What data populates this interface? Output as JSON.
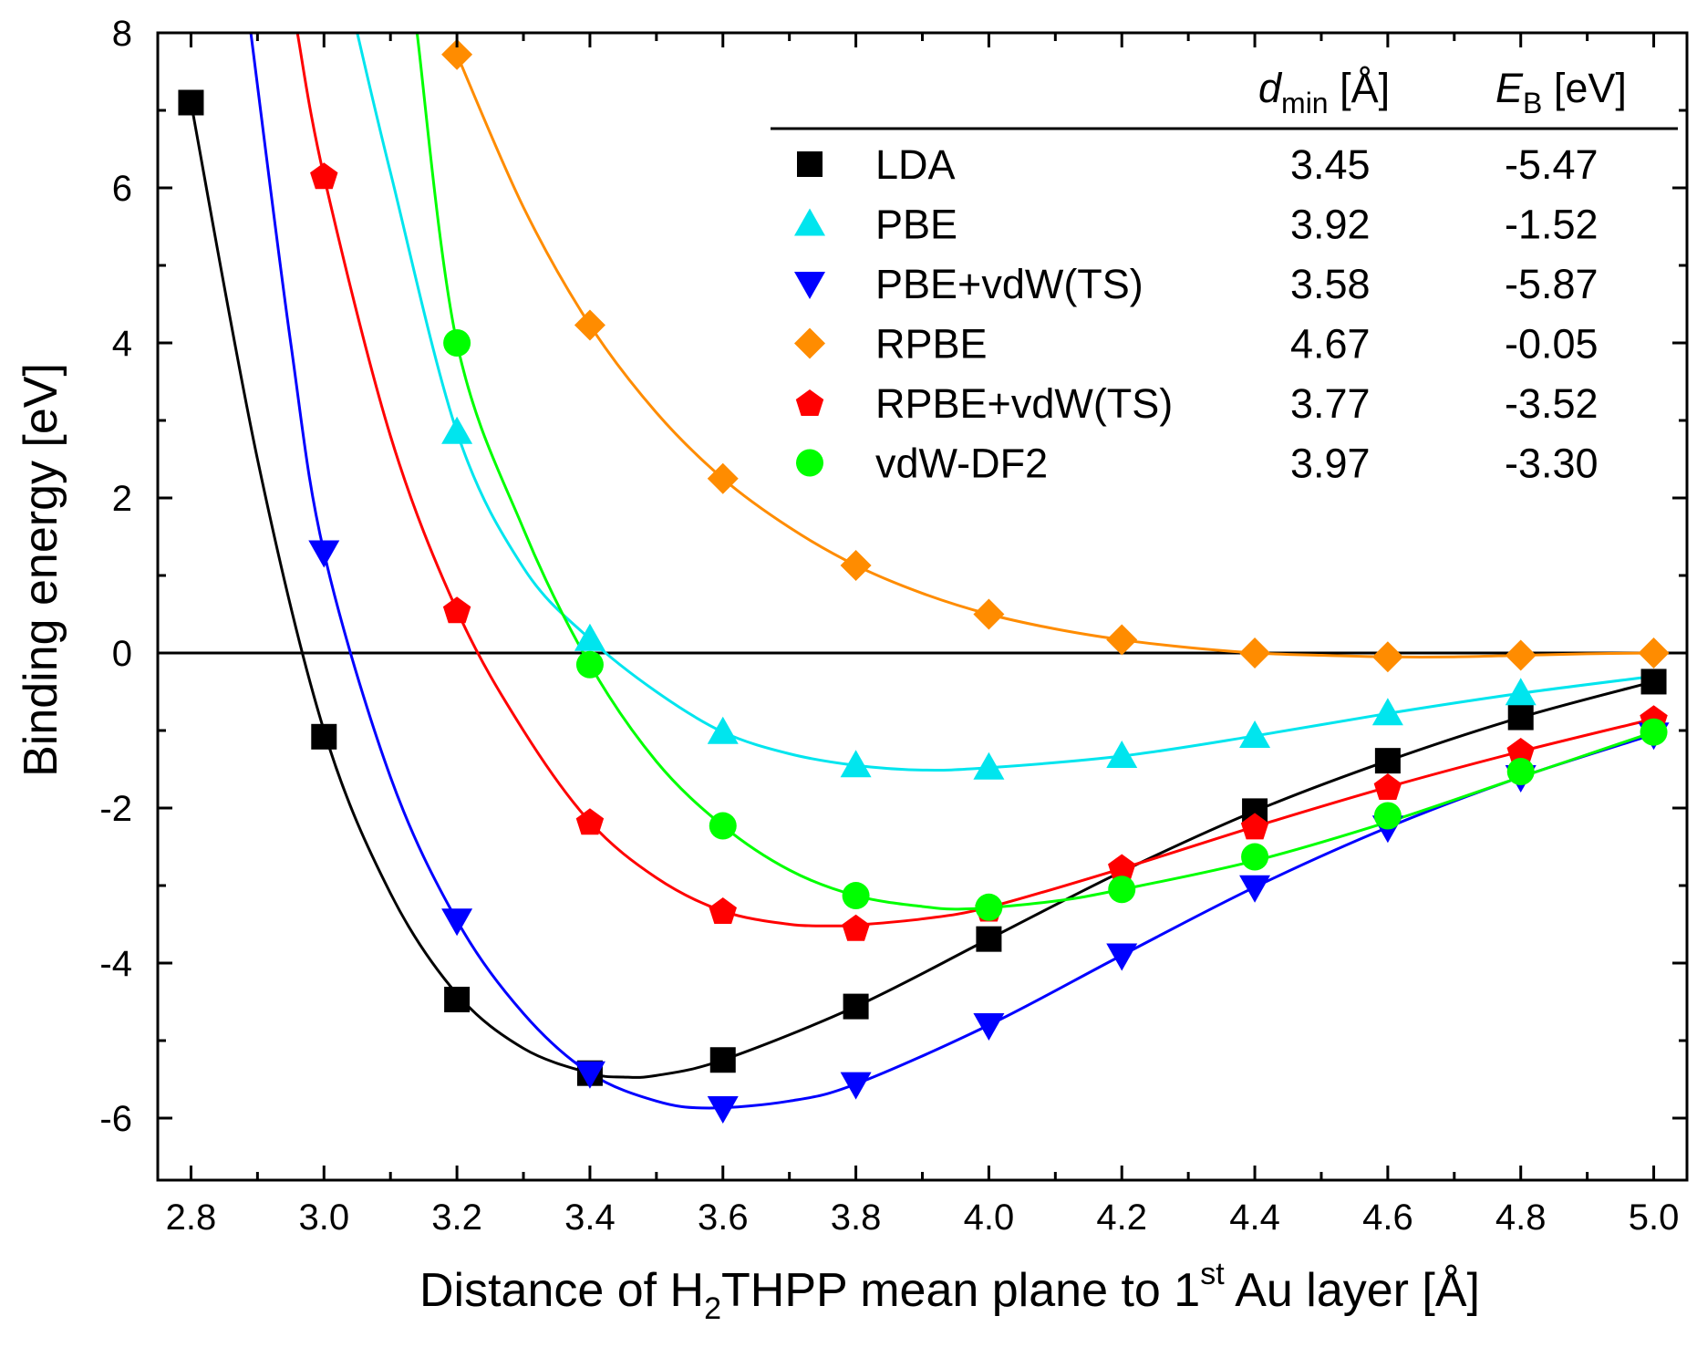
{
  "chart_data": {
    "type": "line",
    "title": "",
    "xlabel": {
      "pre": "Distance of H",
      "sub": "2",
      "mid": "THPP mean plane to 1",
      "sup": "st",
      "post": " Au layer [Å]"
    },
    "ylabel": "Binding energy [eV]",
    "xlim": [
      2.75,
      5.05
    ],
    "ylim": [
      -6.8,
      8
    ],
    "x_ticks": [
      "2.8",
      "3.0",
      "3.2",
      "3.4",
      "3.6",
      "3.8",
      "4.0",
      "4.2",
      "4.4",
      "4.6",
      "4.8",
      "5.0"
    ],
    "y_ticks": [
      "-6",
      "-4",
      "-2",
      "0",
      "2",
      "4",
      "6",
      "8"
    ],
    "zero_line": true,
    "legend_header": {
      "dmin": {
        "var": "d",
        "sub": "min",
        "unit": " [Å]"
      },
      "eb": {
        "var": "E",
        "sub": "B",
        "unit": " [eV]"
      }
    },
    "series": [
      {
        "name": "LDA",
        "color": "#000000",
        "marker": "square",
        "dmin": "3.45",
        "eb": "-5.47",
        "x": [
          2.8,
          3.0,
          3.2,
          3.4,
          3.6,
          3.8,
          4.0,
          4.4,
          4.6,
          4.8,
          5.0
        ],
        "y": [
          7.1,
          -1.08,
          -4.47,
          -5.42,
          -5.25,
          -4.56,
          -3.69,
          -2.04,
          -1.39,
          -0.83,
          -0.37
        ],
        "curve_x": [
          2.8,
          2.9,
          3.0,
          3.1,
          3.2,
          3.3,
          3.4,
          3.45,
          3.5,
          3.6,
          3.8,
          4.0,
          4.2,
          4.4,
          4.6,
          4.8,
          5.0
        ],
        "curve_y": [
          7.1,
          2.5,
          -1.0,
          -3.1,
          -4.4,
          -5.1,
          -5.42,
          -5.47,
          -5.45,
          -5.25,
          -4.56,
          -3.69,
          -2.82,
          -2.04,
          -1.39,
          -0.83,
          -0.37
        ]
      },
      {
        "name": "PBE",
        "color": "#00e5ee",
        "marker": "triangle-up",
        "dmin": "3.92",
        "eb": "-1.52",
        "x": [
          3.2,
          3.4,
          3.6,
          3.8,
          4.0,
          4.2,
          4.4,
          4.6,
          4.8
        ],
        "y": [
          2.85,
          0.18,
          -1.02,
          -1.45,
          -1.48,
          -1.33,
          -1.07,
          -0.78,
          -0.52
        ],
        "curve_x": [
          3.05,
          3.1,
          3.2,
          3.3,
          3.4,
          3.5,
          3.6,
          3.7,
          3.8,
          3.9,
          4.0,
          4.2,
          4.4,
          4.6,
          4.8,
          5.0
        ],
        "curve_y": [
          8.0,
          6.2,
          2.85,
          1.1,
          0.18,
          -0.5,
          -1.02,
          -1.3,
          -1.45,
          -1.51,
          -1.48,
          -1.33,
          -1.07,
          -0.78,
          -0.52,
          -0.3
        ]
      },
      {
        "name": "PBE+vdW(TS)",
        "color": "#0000ff",
        "marker": "triangle-down",
        "dmin": "3.58",
        "eb": "-5.87",
        "x": [
          3.0,
          3.2,
          3.4,
          3.6,
          3.8,
          4.0,
          4.2,
          4.4,
          4.6,
          4.8,
          5.0
        ],
        "y": [
          1.3,
          -3.45,
          -5.42,
          -5.87,
          -5.56,
          -4.8,
          -3.9,
          -3.02,
          -2.25,
          -1.6,
          -1.05
        ],
        "curve_x": [
          2.89,
          2.95,
          3.0,
          3.1,
          3.2,
          3.3,
          3.4,
          3.5,
          3.58,
          3.7,
          3.8,
          4.0,
          4.2,
          4.4,
          4.6,
          4.8,
          5.0
        ],
        "curve_y": [
          8.0,
          4.0,
          1.3,
          -1.6,
          -3.45,
          -4.65,
          -5.42,
          -5.78,
          -5.87,
          -5.78,
          -5.56,
          -4.8,
          -3.9,
          -3.02,
          -2.25,
          -1.6,
          -1.05
        ]
      },
      {
        "name": "RPBE",
        "color": "#ff8c00",
        "marker": "diamond",
        "dmin": "4.67",
        "eb": "-0.05",
        "x": [
          3.2,
          3.4,
          3.6,
          3.8,
          4.0,
          4.2,
          4.4,
          4.6,
          4.8,
          5.0
        ],
        "y": [
          7.72,
          4.23,
          2.25,
          1.13,
          0.5,
          0.17,
          0.0,
          -0.05,
          -0.03,
          0.0
        ],
        "curve_x": [
          3.2,
          3.3,
          3.4,
          3.5,
          3.6,
          3.7,
          3.8,
          3.9,
          4.0,
          4.1,
          4.2,
          4.3,
          4.4,
          4.5,
          4.6,
          4.7,
          4.8,
          4.9,
          5.0
        ],
        "curve_y": [
          7.72,
          5.75,
          4.23,
          3.1,
          2.25,
          1.62,
          1.13,
          0.77,
          0.5,
          0.31,
          0.17,
          0.07,
          0.0,
          -0.03,
          -0.05,
          -0.05,
          -0.03,
          -0.01,
          0.0
        ]
      },
      {
        "name": "RPBE+vdW(TS)",
        "color": "#ff0000",
        "marker": "pentagon",
        "dmin": "3.77",
        "eb": "-3.52",
        "x": [
          3.0,
          3.2,
          3.4,
          3.6,
          3.8,
          4.0,
          4.2,
          4.4,
          4.6,
          4.8,
          5.0
        ],
        "y": [
          6.15,
          0.55,
          -2.18,
          -3.33,
          -3.55,
          -3.3,
          -2.77,
          -2.24,
          -1.73,
          -1.27,
          -0.85
        ],
        "curve_x": [
          2.96,
          3.0,
          3.1,
          3.2,
          3.3,
          3.4,
          3.5,
          3.6,
          3.7,
          3.77,
          3.8,
          3.9,
          4.0,
          4.2,
          4.4,
          4.6,
          4.8,
          5.0
        ],
        "curve_y": [
          8.0,
          6.15,
          2.8,
          0.55,
          -1.0,
          -2.18,
          -2.9,
          -3.33,
          -3.5,
          -3.52,
          -3.51,
          -3.43,
          -3.28,
          -2.78,
          -2.24,
          -1.73,
          -1.27,
          -0.85
        ]
      },
      {
        "name": "vdW-DF2",
        "color": "#00ff00",
        "marker": "circle",
        "dmin": "3.97",
        "eb": "-3.30",
        "x": [
          3.2,
          3.4,
          3.6,
          3.8,
          4.0,
          4.2,
          4.4,
          4.6,
          4.8,
          5.0
        ],
        "y": [
          4.0,
          -0.15,
          -2.23,
          -3.13,
          -3.28,
          -3.05,
          -2.63,
          -2.1,
          -1.53,
          -1.02
        ],
        "curve_x": [
          3.14,
          3.2,
          3.3,
          3.4,
          3.5,
          3.6,
          3.7,
          3.8,
          3.9,
          3.97,
          4.1,
          4.2,
          4.4,
          4.6,
          4.8,
          5.0
        ],
        "curve_y": [
          8.0,
          4.0,
          1.6,
          -0.15,
          -1.4,
          -2.23,
          -2.8,
          -3.13,
          -3.27,
          -3.3,
          -3.2,
          -3.05,
          -2.68,
          -2.18,
          -1.6,
          -1.02
        ]
      }
    ]
  }
}
